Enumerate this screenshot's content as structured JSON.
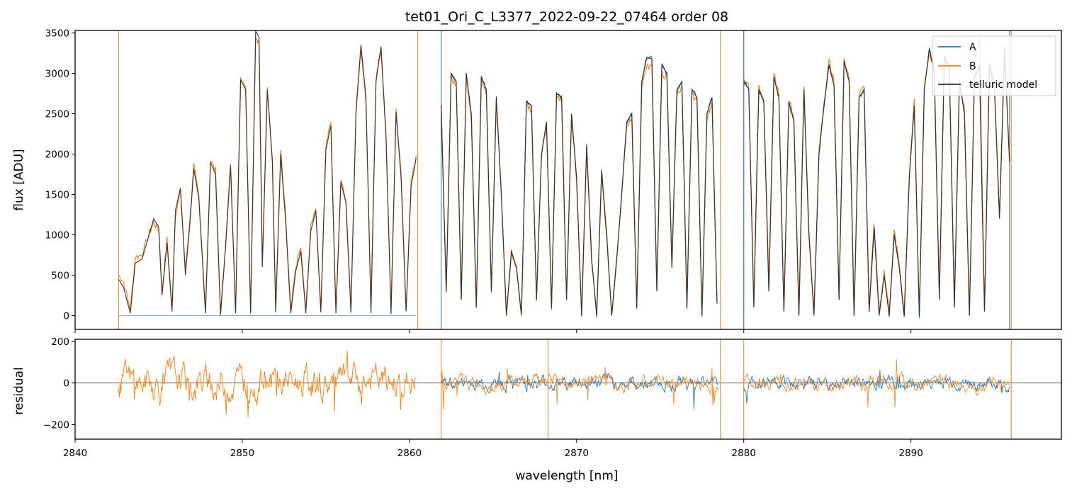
{
  "chart_data": [
    {
      "type": "line",
      "title": "tet01_Ori_C_L3377_2022-09-22_07464  order 08",
      "xlabel": "",
      "ylabel": "flux [ADU]",
      "xlim": [
        2840,
        2899
      ],
      "ylim": [
        -170,
        3530
      ],
      "yticks": [
        0,
        500,
        1000,
        1500,
        2000,
        2500,
        3000,
        3500
      ],
      "legend": {
        "placement": "top-right",
        "entries": [
          "A",
          "B",
          "telluric model"
        ]
      },
      "colors": {
        "A": "#1f77b4",
        "B": "#ff7f0e",
        "telluric model": "#222222"
      },
      "segments": [
        {
          "range": [
            2842.6,
            2860.5
          ],
          "x": [
            2842.6,
            2842.9,
            2843.3,
            2843.6,
            2844.0,
            2844.4,
            2844.7,
            2845.0,
            2845.2,
            2845.5,
            2845.8,
            2846.0,
            2846.3,
            2846.6,
            2846.9,
            2847.1,
            2847.4,
            2847.8,
            2848.1,
            2848.4,
            2848.7,
            2849.0,
            2849.3,
            2849.6,
            2849.9,
            2850.2,
            2850.5,
            2850.8,
            2851.0,
            2851.2,
            2851.5,
            2851.8,
            2852.0,
            2852.3,
            2852.6,
            2852.9,
            2853.2,
            2853.5,
            2853.8,
            2854.1,
            2854.4,
            2854.7,
            2855.0,
            2855.3,
            2855.6,
            2855.9,
            2856.2,
            2856.5,
            2856.8,
            2857.1,
            2857.4,
            2857.7,
            2858.0,
            2858.3,
            2858.6,
            2858.9,
            2859.2,
            2859.5,
            2859.8,
            2860.1,
            2860.4
          ],
          "model": [
            450,
            350,
            30,
            650,
            700,
            980,
            1200,
            1100,
            250,
            900,
            50,
            1300,
            1580,
            500,
            1230,
            1820,
            1450,
            30,
            1900,
            1750,
            10,
            850,
            1850,
            30,
            2920,
            2800,
            30,
            3520,
            3450,
            600,
            2800,
            1900,
            40,
            2000,
            1150,
            30,
            550,
            800,
            30,
            1050,
            1300,
            40,
            2050,
            2350,
            30,
            1650,
            1400,
            40,
            2500,
            3350,
            2700,
            30,
            2900,
            3330,
            2200,
            20,
            2520,
            1700,
            60,
            1600,
            1950
          ],
          "model_B": [
            500,
            420,
            80,
            720,
            760,
            1000,
            1150,
            1060,
            300,
            950,
            90,
            1250,
            1530,
            560,
            1290,
            1850,
            1500,
            60,
            1950,
            1800,
            40,
            880,
            1900,
            70,
            2950,
            2850,
            60,
            3450,
            3380,
            650,
            2860,
            1950,
            70,
            2050,
            1200,
            60,
            600,
            850,
            60,
            1100,
            1350,
            70,
            2100,
            2400,
            60,
            1700,
            1450,
            70,
            2550,
            3300,
            2650,
            60,
            2950,
            3280,
            2250,
            50,
            2560,
            1750,
            80,
            1650,
            1980
          ]
        },
        {
          "range": [
            2861.9,
            2878.6
          ],
          "x": [
            2861.9,
            2862.2,
            2862.5,
            2862.8,
            2863.1,
            2863.4,
            2863.7,
            2864.0,
            2864.3,
            2864.6,
            2864.9,
            2865.2,
            2865.5,
            2865.8,
            2866.1,
            2866.4,
            2866.7,
            2867.0,
            2867.3,
            2867.6,
            2867.9,
            2868.2,
            2868.5,
            2868.8,
            2869.1,
            2869.4,
            2869.7,
            2870.0,
            2870.3,
            2870.6,
            2870.9,
            2871.2,
            2871.5,
            2871.8,
            2872.1,
            2872.4,
            2872.7,
            2873.0,
            2873.3,
            2873.6,
            2873.9,
            2874.2,
            2874.5,
            2874.8,
            2875.1,
            2875.4,
            2875.7,
            2876.0,
            2876.3,
            2876.6,
            2876.9,
            2877.2,
            2877.5,
            2877.8,
            2878.1,
            2878.4
          ],
          "model": [
            2600,
            300,
            3000,
            2900,
            200,
            3000,
            2500,
            100,
            2950,
            2800,
            300,
            2700,
            1500,
            0,
            800,
            600,
            0,
            2650,
            2600,
            200,
            2000,
            2400,
            100,
            2750,
            2700,
            200,
            2500,
            1700,
            0,
            2100,
            700,
            0,
            1800,
            1000,
            0,
            700,
            1500,
            2400,
            2500,
            100,
            2900,
            3200,
            3180,
            300,
            3100,
            3000,
            600,
            2800,
            2900,
            100,
            2800,
            2700,
            0,
            2500,
            2700,
            150
          ],
          "model_B": [
            2550,
            320,
            2950,
            2850,
            220,
            2950,
            2450,
            120,
            2900,
            2750,
            320,
            2650,
            1480,
            20,
            790,
            590,
            20,
            2600,
            2550,
            220,
            1980,
            2350,
            120,
            2700,
            2650,
            220,
            2450,
            1680,
            20,
            2050,
            690,
            20,
            1760,
            980,
            20,
            690,
            1480,
            2350,
            2450,
            120,
            2850,
            3080,
            3080,
            320,
            3000,
            2930,
            610,
            2740,
            2840,
            120,
            2740,
            2650,
            20,
            2450,
            2650,
            170
          ]
        },
        {
          "range": [
            2880.0,
            2895.9
          ],
          "x": [
            2880.0,
            2880.3,
            2880.6,
            2880.9,
            2881.2,
            2881.5,
            2881.8,
            2882.1,
            2882.4,
            2882.7,
            2883.0,
            2883.3,
            2883.6,
            2883.9,
            2884.2,
            2884.5,
            2884.8,
            2885.1,
            2885.4,
            2885.7,
            2886.0,
            2886.3,
            2886.6,
            2886.9,
            2887.2,
            2887.5,
            2887.8,
            2888.1,
            2888.4,
            2888.7,
            2889.0,
            2889.3,
            2889.6,
            2889.9,
            2890.2,
            2890.5,
            2890.8,
            2891.1,
            2891.4,
            2891.7,
            2892.0,
            2892.3,
            2892.6,
            2892.9,
            2893.2,
            2893.5,
            2893.8,
            2894.1,
            2894.4,
            2894.7,
            2895.0,
            2895.3,
            2895.6,
            2895.9
          ],
          "model": [
            2900,
            2800,
            100,
            2800,
            2650,
            300,
            2950,
            2700,
            50,
            2650,
            2400,
            0,
            2800,
            1000,
            0,
            2000,
            2600,
            3100,
            2850,
            200,
            3150,
            2900,
            0,
            2700,
            2800,
            50,
            1100,
            0,
            500,
            0,
            1000,
            600,
            0,
            1700,
            2600,
            0,
            2800,
            3300,
            3000,
            200,
            3200,
            3050,
            100,
            2900,
            2500,
            0,
            2950,
            3100,
            50,
            3100,
            2800,
            1200,
            3300,
            1900
          ],
          "model_B": [
            2950,
            2850,
            150,
            2850,
            2700,
            350,
            3000,
            2750,
            100,
            2700,
            2450,
            50,
            2850,
            1050,
            50,
            2050,
            2650,
            3150,
            2900,
            250,
            3200,
            2950,
            50,
            2750,
            2850,
            100,
            1150,
            50,
            550,
            50,
            1050,
            650,
            50,
            1750,
            2650,
            50,
            2850,
            3250,
            3050,
            250,
            3250,
            3100,
            150,
            2950,
            2550,
            50,
            3000,
            3450,
            100,
            3150,
            2850,
            1250,
            3350,
            1950
          ]
        }
      ],
      "flat_line": {
        "x": [
          2842.6,
          2860.4
        ],
        "y": 0
      },
      "vlines": {
        "B": [
          2842.6,
          2860.5,
          2878.6,
          2880.0,
          2896.0
        ],
        "A": [
          2861.9,
          2880.0,
          2895.9
        ]
      }
    },
    {
      "type": "line",
      "title": "",
      "xlabel": "wavelength [nm]",
      "ylabel": "residual",
      "xlim": [
        2840,
        2899
      ],
      "ylim": [
        -270,
        210
      ],
      "xticks": [
        2840,
        2850,
        2860,
        2870,
        2880,
        2890
      ],
      "yticks": [
        -200,
        0,
        200
      ],
      "zero_line": 0,
      "colors": {
        "A": "#1f77b4",
        "B": "#ff7f0e"
      },
      "vlines": {
        "B": [
          2861.9,
          2868.3,
          2878.6,
          2880.0,
          2896.0
        ]
      }
    }
  ]
}
